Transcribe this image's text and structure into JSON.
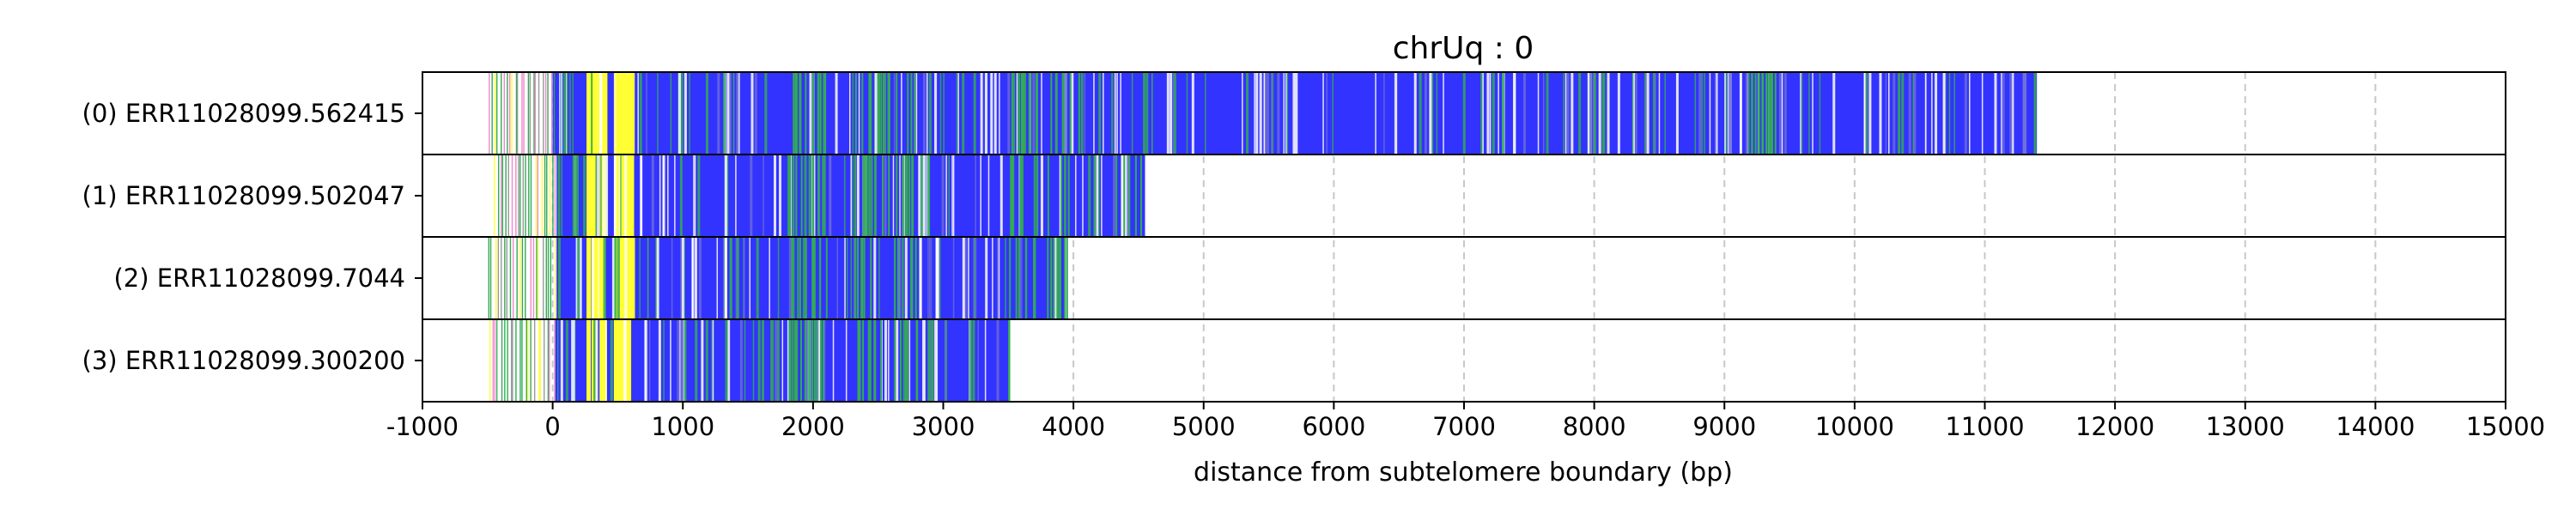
{
  "chart_data": {
    "type": "bar",
    "title": "chrUq : 0",
    "xlabel": "distance from subtelomere boundary (bp)",
    "ylabel": "",
    "xlim": [
      -1000,
      15000
    ],
    "xticks": [
      -1000,
      0,
      1000,
      2000,
      3000,
      4000,
      5000,
      6000,
      7000,
      8000,
      9000,
      10000,
      11000,
      12000,
      13000,
      14000,
      15000
    ],
    "grid": "vertical dashed",
    "colors": {
      "repeat": "#3333ff",
      "yellow": "#ffff33",
      "green": "#33aa55",
      "pink": "#ee88cc",
      "gray": "#999999",
      "grid": "#c8c8c8"
    },
    "reads": [
      {
        "label": "(0) ERR11028099.562415",
        "start": -500,
        "end": 11400,
        "dense_start": 0
      },
      {
        "label": "(1) ERR11028099.502047",
        "start": -450,
        "end": 4550,
        "dense_start": 30
      },
      {
        "label": "(2) ERR11028099.7044",
        "start": -500,
        "end": 3950,
        "dense_start": 30
      },
      {
        "label": "(3) ERR11028099.300200",
        "start": -500,
        "end": 3500,
        "dense_start": 20
      }
    ]
  }
}
